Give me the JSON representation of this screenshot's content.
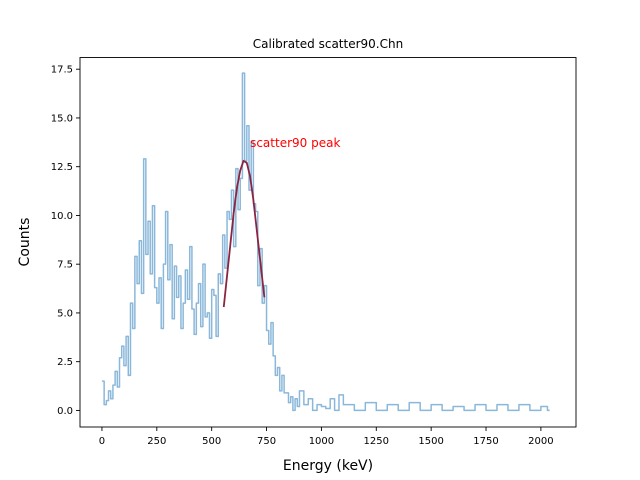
{
  "chart_data": {
    "type": "line",
    "title": "Calibrated scatter90.Chn",
    "xlabel": "Energy (keV)",
    "ylabel": "Counts",
    "xlim": [
      -100,
      2160
    ],
    "ylim": [
      -0.85,
      18.1
    ],
    "x_ticks": [
      0,
      250,
      500,
      750,
      1000,
      1250,
      1500,
      1750,
      2000
    ],
    "y_ticks": [
      0.0,
      2.5,
      5.0,
      7.5,
      10.0,
      12.5,
      15.0,
      17.5
    ],
    "x_tick_labels": [
      "0",
      "250",
      "500",
      "750",
      "1000",
      "1250",
      "1500",
      "1750",
      "2000"
    ],
    "y_tick_labels": [
      "0.0",
      "2.5",
      "5.0",
      "7.5",
      "10.0",
      "12.5",
      "15.0",
      "17.5"
    ],
    "grid": false,
    "series": [
      {
        "role": "spectrum",
        "color": "#8bb8da",
        "x": [
          0,
          10,
          20,
          30,
          40,
          50,
          60,
          70,
          80,
          90,
          100,
          110,
          120,
          130,
          140,
          150,
          160,
          170,
          180,
          190,
          200,
          210,
          220,
          230,
          240,
          250,
          260,
          270,
          280,
          290,
          300,
          310,
          320,
          330,
          340,
          350,
          360,
          370,
          380,
          390,
          400,
          410,
          420,
          430,
          440,
          450,
          460,
          470,
          480,
          490,
          500,
          510,
          520,
          530,
          540,
          550,
          560,
          570,
          580,
          590,
          600,
          610,
          620,
          630,
          640,
          650,
          660,
          670,
          680,
          690,
          700,
          710,
          720,
          730,
          740,
          750,
          760,
          770,
          780,
          790,
          800,
          810,
          820,
          830,
          840,
          850,
          860,
          870,
          880,
          890,
          900,
          920,
          940,
          960,
          980,
          1000,
          1020,
          1040,
          1060,
          1080,
          1100,
          1150,
          1200,
          1250,
          1300,
          1350,
          1400,
          1450,
          1500,
          1550,
          1600,
          1650,
          1700,
          1750,
          1800,
          1850,
          1900,
          1950,
          2000,
          2030
        ],
        "y": [
          1.5,
          0.3,
          0.5,
          1.0,
          0.6,
          1.3,
          2.0,
          1.2,
          2.7,
          3.3,
          2.3,
          3.8,
          1.8,
          5.5,
          4.2,
          7.9,
          6.5,
          8.7,
          6.0,
          12.9,
          8.0,
          9.7,
          7.0,
          10.5,
          6.3,
          5.5,
          6.8,
          4.2,
          7.5,
          10.2,
          6.7,
          8.5,
          4.7,
          7.4,
          5.8,
          6.9,
          4.2,
          5.5,
          7.2,
          5.7,
          8.4,
          5.2,
          3.9,
          5.5,
          6.5,
          4.3,
          7.5,
          4.8,
          5.0,
          3.7,
          6.2,
          5.9,
          3.8,
          7.0,
          6.5,
          9.0,
          7.3,
          10.2,
          9.8,
          11.3,
          8.4,
          12.4,
          10.3,
          11.9,
          17.3,
          12.8,
          14.6,
          11.3,
          13.8,
          10.6,
          10.2,
          6.4,
          8.3,
          5.5,
          6.4,
          4.1,
          3.4,
          4.5,
          2.8,
          1.8,
          2.2,
          1.0,
          1.8,
          0.9,
          0.9,
          0.4,
          0.7,
          0.0,
          0.6,
          0.2,
          1.0,
          0.3,
          0.6,
          0.0,
          0.3,
          0.2,
          0.1,
          0.6,
          0.0,
          0.8,
          0.3,
          0.0,
          0.4,
          0.0,
          0.3,
          0.0,
          0.4,
          0.0,
          0.3,
          0.0,
          0.2,
          0.0,
          0.3,
          0.0,
          0.3,
          0.0,
          0.3,
          0.0,
          0.2,
          0.0
        ]
      },
      {
        "role": "fit",
        "color": "#8b2442",
        "x": [
          555,
          570,
          585,
          600,
          615,
          630,
          645,
          660,
          675,
          690,
          705,
          720,
          735,
          740
        ],
        "y": [
          5.3,
          6.9,
          8.5,
          10.1,
          11.4,
          12.3,
          12.8,
          12.7,
          12.0,
          10.8,
          9.3,
          7.8,
          6.3,
          5.8
        ]
      }
    ],
    "annotation": {
      "text": "scatter90 peak",
      "x": 675,
      "y": 13.5,
      "color": "#ff0000"
    }
  }
}
